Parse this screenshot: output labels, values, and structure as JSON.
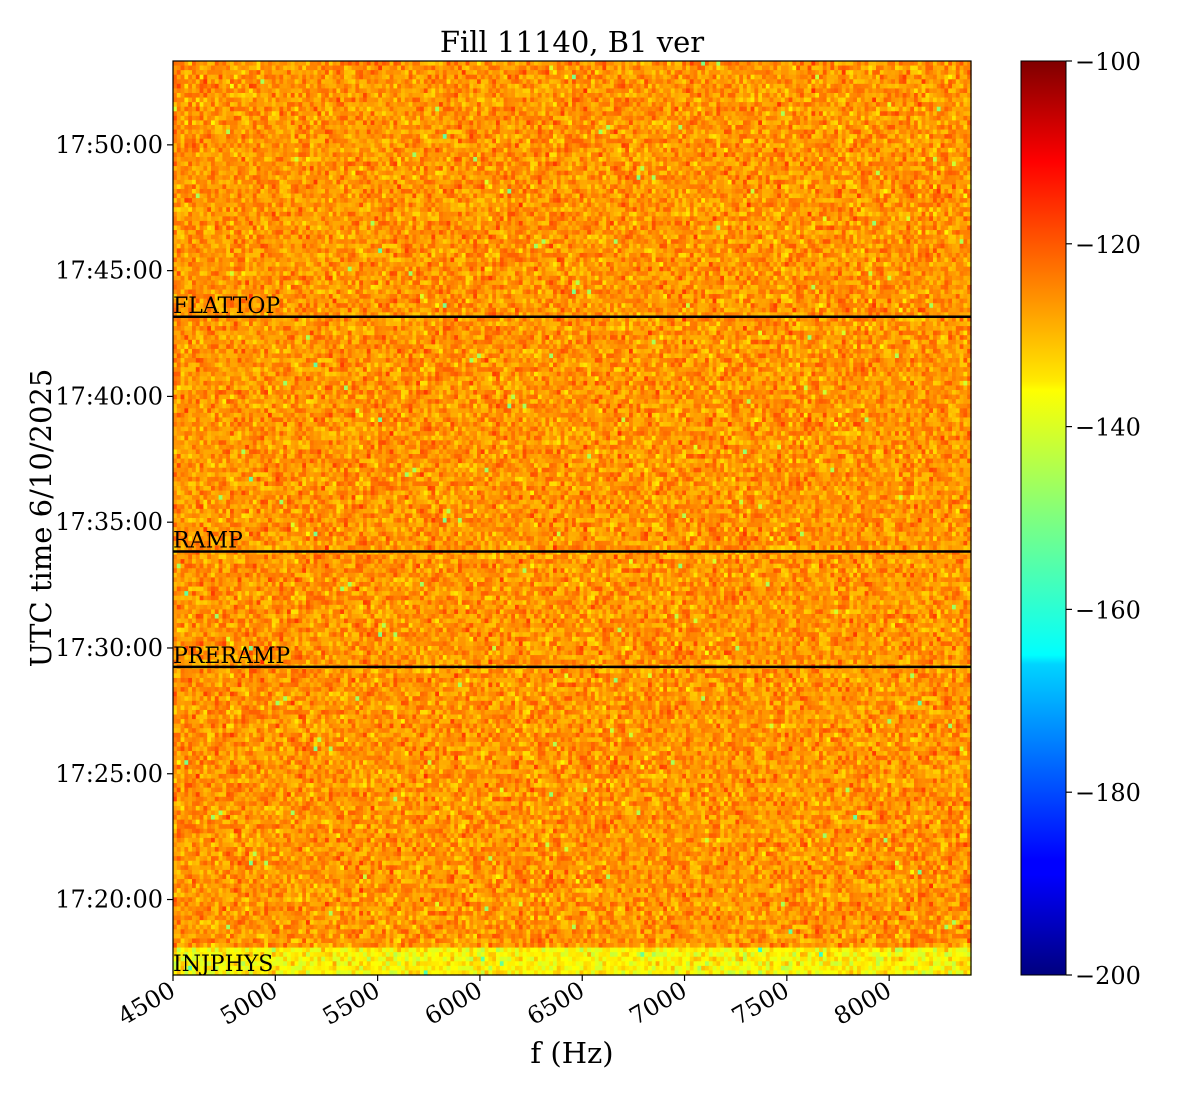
{
  "chart_data": {
    "type": "heatmap",
    "title": "Fill 11140, B1 ver",
    "xlabel": "f (Hz)",
    "ylabel": "UTC time 6/10/2025",
    "xlim": [
      4500,
      8400
    ],
    "ylim": [
      "17:17:00",
      "17:53:20"
    ],
    "x_ticks": [
      4500,
      5000,
      5500,
      6000,
      6500,
      7000,
      7500,
      8000
    ],
    "y_ticks": [
      "17:20:00",
      "17:25:00",
      "17:30:00",
      "17:35:00",
      "17:40:00",
      "17:45:00",
      "17:50:00"
    ],
    "colormap": "jet",
    "colorbar": {
      "min": -200,
      "max": -100,
      "ticks": [
        -100,
        -120,
        -140,
        -160,
        -180,
        -200
      ]
    },
    "typical_value": -127,
    "injphys_value": -137,
    "phases": [
      {
        "label": "INJPHYS",
        "time": "17:17:00"
      },
      {
        "label": "PRERAMP",
        "time": "17:29:15"
      },
      {
        "label": "RAMP",
        "time": "17:33:50"
      },
      {
        "label": "FLATTOP",
        "time": "17:43:10"
      }
    ],
    "grid": false
  }
}
